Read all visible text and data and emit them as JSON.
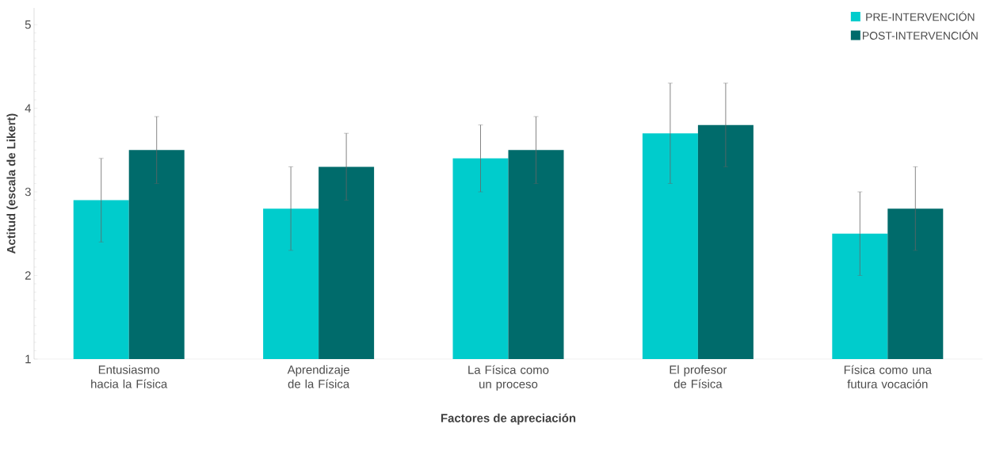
{
  "chart_data": {
    "type": "bar",
    "xlabel": "Factores de apreciación",
    "ylabel": "Actitud (escala de Likert)",
    "categories": [
      "Entusiasmo hacia la Física",
      "Aprendizaje de la Física",
      "La Física como un proceso",
      "El profesor de Física",
      "Física como una futura vocación"
    ],
    "series": [
      {
        "name": "PRE-INTERVENCIÓN",
        "color": "#00cccc",
        "values": [
          2.9,
          2.8,
          3.4,
          3.7,
          2.5
        ],
        "errors": [
          0.5,
          0.5,
          0.4,
          0.6,
          0.5
        ]
      },
      {
        "name": "POST-INTERVENCIÓN",
        "color": "#006b6b",
        "values": [
          3.5,
          3.3,
          3.5,
          3.8,
          2.8
        ],
        "errors": [
          0.4,
          0.4,
          0.4,
          0.5,
          0.5
        ]
      }
    ],
    "ylim": [
      1,
      5.2
    ],
    "yticks": [
      1,
      2,
      3,
      4,
      5
    ],
    "grid": false,
    "legend": "top right"
  }
}
